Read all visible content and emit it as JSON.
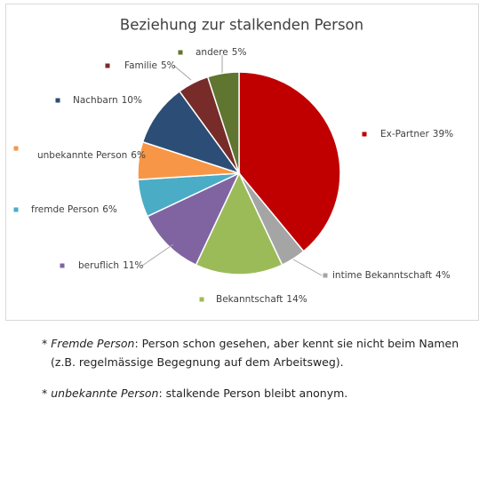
{
  "chart_data": {
    "type": "pie",
    "title": "Beziehung zur stalkenden Person",
    "categories": [
      "Ex-Partner",
      "intime Bekanntschaft",
      "Bekanntschaft",
      "beruflich",
      "fremde Person",
      "unbekannte Person",
      "Nachbarn",
      "Familie",
      "andere"
    ],
    "values": [
      39,
      4,
      14,
      11,
      6,
      6,
      10,
      5,
      5
    ],
    "value_labels": [
      "39%",
      "4%",
      "14%",
      "11%",
      "6%",
      "6%",
      "10%",
      "5%",
      "5%"
    ],
    "colors": [
      "#c00000",
      "#a5a5a5",
      "#9bbb59",
      "#8064a2",
      "#4bacc6",
      "#f79646",
      "#2c4d75",
      "#772c2a",
      "#5f7530"
    ]
  },
  "notes": [
    {
      "marker": "*",
      "term": "Fremde Person",
      "text": ": Person schon gesehen, aber kennt sie nicht beim Namen",
      "continuation": "(z.B. regelmässige Begegnung auf dem Arbeitsweg)."
    },
    {
      "marker": "*",
      "term": "unbekannte Person",
      "text": ": stalkende Person bleibt anonym."
    }
  ]
}
